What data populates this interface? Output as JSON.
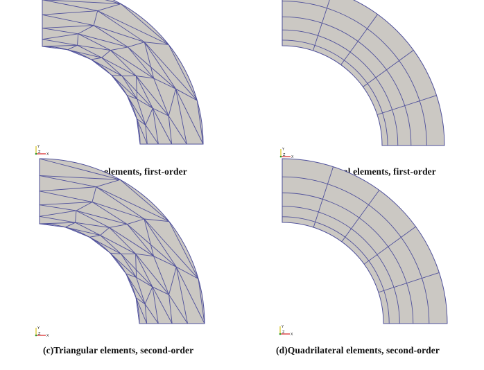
{
  "panels": [
    {
      "id": "a",
      "caption": "(a)Triangular elements, first-order",
      "element_type": "triangle",
      "order": "first",
      "axis_labels": {
        "y": "Y",
        "z": "Z",
        "x": "X"
      }
    },
    {
      "id": "b",
      "caption": "(b)Quadrilateral elements, first-order",
      "element_type": "quadrilateral",
      "order": "first",
      "axis_labels": {
        "y": "Y",
        "z": "Z",
        "x": "X"
      }
    },
    {
      "id": "c",
      "caption": "(c)Triangular elements, second-order",
      "element_type": "triangle",
      "order": "second",
      "axis_labels": {
        "y": "Y",
        "z": "Z",
        "x": "X"
      }
    },
    {
      "id": "d",
      "caption": "(d)Quadrilateral elements, second-order",
      "element_type": "quadrilateral",
      "order": "second",
      "axis_labels": {
        "y": "Y",
        "z": "Z",
        "x": "X"
      }
    }
  ],
  "colors": {
    "mesh_fill": "#cbc8c3",
    "mesh_edge": "#4e4f9a",
    "axis_x": "#d62020",
    "axis_y": "#d4c21a",
    "axis_z": "#2a9c2a"
  }
}
